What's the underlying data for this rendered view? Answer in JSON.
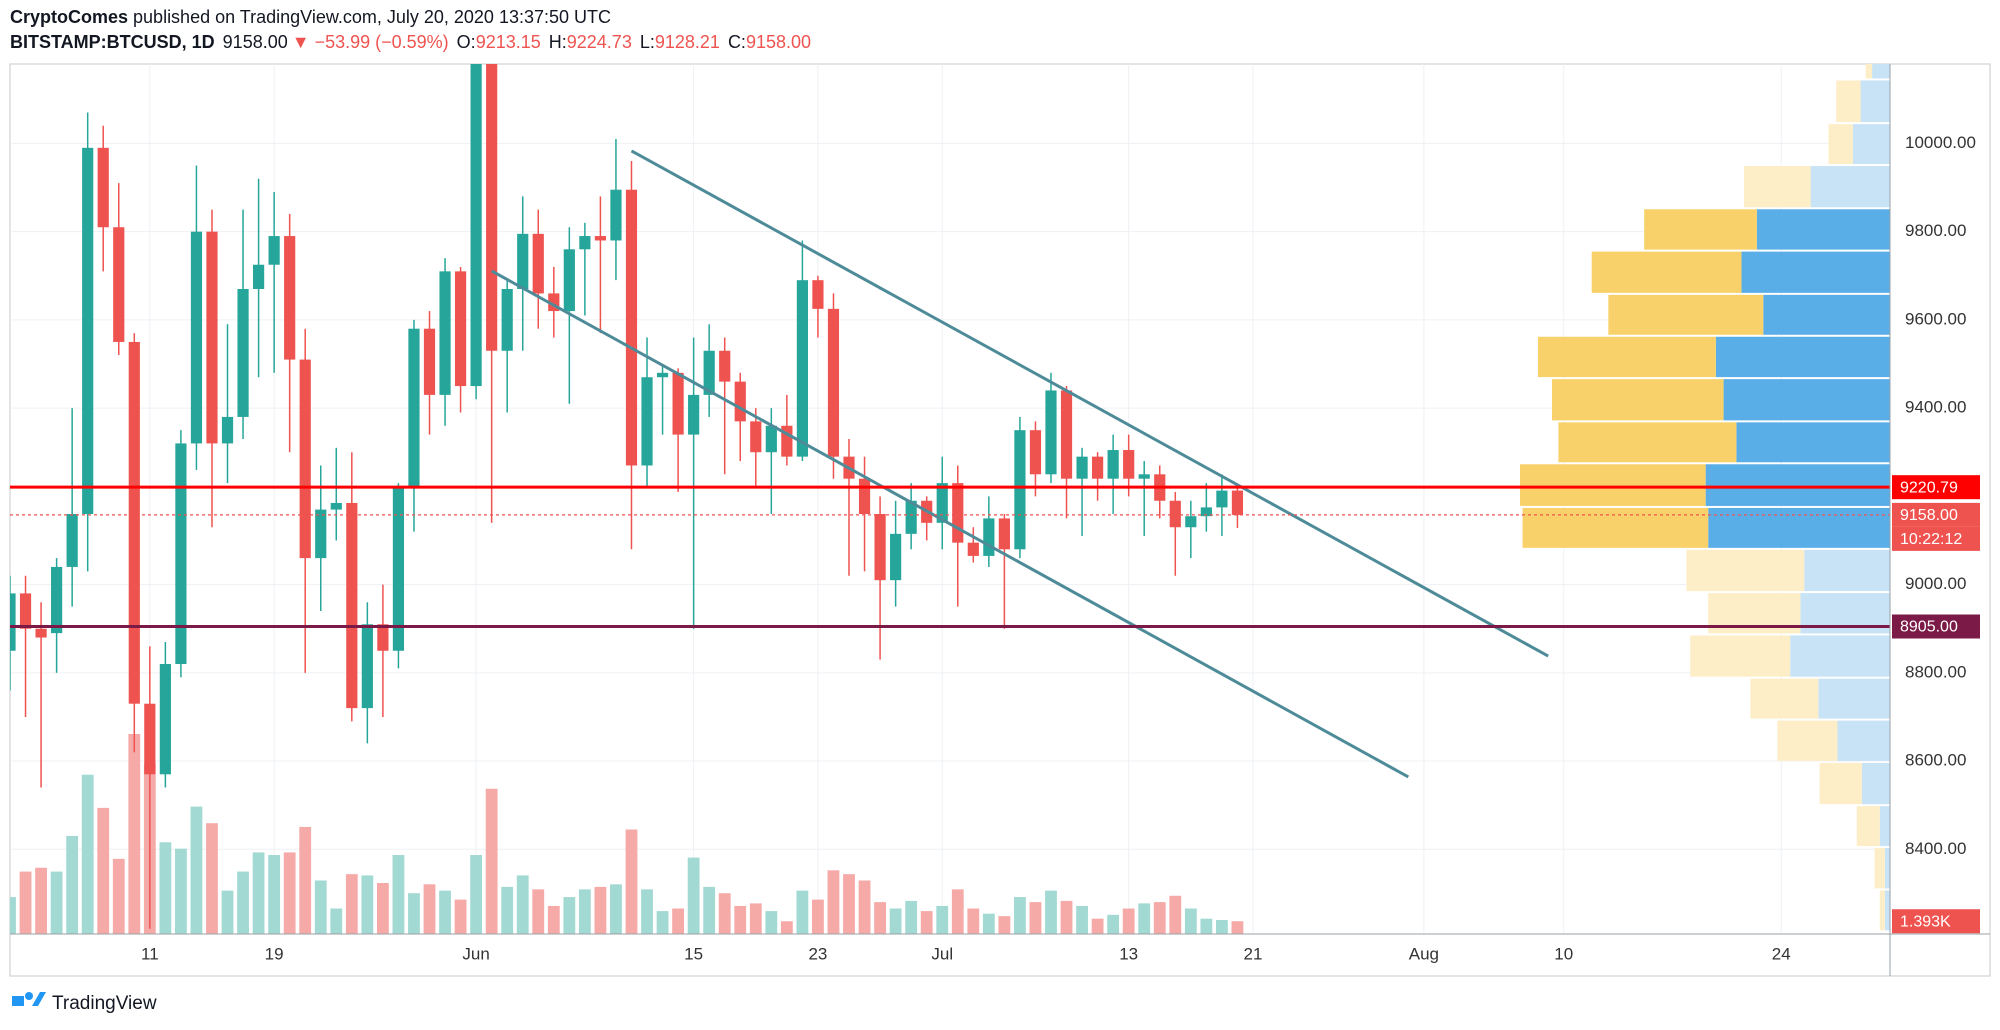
{
  "header": {
    "author": "CryptoComes",
    "published": "published on TradingView.com, July 20, 2020 13:37:50 UTC",
    "symbol": "BITSTAMP:BTCUSD, 1D",
    "last": "9158.00",
    "change": "▼ −53.99 (−0.59%)",
    "ohlc": [
      {
        "label": "O:",
        "value": "9213.15"
      },
      {
        "label": "H:",
        "value": "9224.73"
      },
      {
        "label": "L:",
        "value": "9128.21"
      },
      {
        "label": "C:",
        "value": "9158.00"
      }
    ]
  },
  "footer": {
    "brand": "TradingView"
  },
  "chart_data": {
    "type": "candlestick",
    "x": [
      "2020-05-02",
      "2020-05-03",
      "2020-05-04",
      "2020-05-05",
      "2020-05-06",
      "2020-05-07",
      "2020-05-08",
      "2020-05-09",
      "2020-05-10",
      "2020-05-11",
      "2020-05-12",
      "2020-05-13",
      "2020-05-14",
      "2020-05-15",
      "2020-05-16",
      "2020-05-17",
      "2020-05-18",
      "2020-05-19",
      "2020-05-20",
      "2020-05-21",
      "2020-05-22",
      "2020-05-23",
      "2020-05-24",
      "2020-05-25",
      "2020-05-26",
      "2020-05-27",
      "2020-05-28",
      "2020-05-29",
      "2020-05-30",
      "2020-05-31",
      "2020-06-01",
      "2020-06-02",
      "2020-06-03",
      "2020-06-04",
      "2020-06-05",
      "2020-06-06",
      "2020-06-07",
      "2020-06-08",
      "2020-06-09",
      "2020-06-10",
      "2020-06-11",
      "2020-06-12",
      "2020-06-13",
      "2020-06-14",
      "2020-06-15",
      "2020-06-16",
      "2020-06-17",
      "2020-06-18",
      "2020-06-19",
      "2020-06-20",
      "2020-06-21",
      "2020-06-22",
      "2020-06-23",
      "2020-06-24",
      "2020-06-25",
      "2020-06-26",
      "2020-06-27",
      "2020-06-28",
      "2020-06-29",
      "2020-06-30",
      "2020-07-01",
      "2020-07-02",
      "2020-07-03",
      "2020-07-04",
      "2020-07-05",
      "2020-07-06",
      "2020-07-07",
      "2020-07-08",
      "2020-07-09",
      "2020-07-10",
      "2020-07-11",
      "2020-07-12",
      "2020-07-13",
      "2020-07-14",
      "2020-07-15",
      "2020-07-16",
      "2020-07-17",
      "2020-07-18",
      "2020-07-19",
      "2020-07-20"
    ],
    "open": [
      8850,
      8980,
      8900,
      8890,
      9040,
      9160,
      9990,
      9810,
      9550,
      8730,
      8570,
      8820,
      9320,
      9800,
      9320,
      9380,
      9670,
      9725,
      9790,
      9510,
      9060,
      9170,
      9185,
      8720,
      8910,
      8850,
      9220,
      9580,
      9430,
      9710,
      9450,
      10200,
      9530,
      9670,
      9795,
      9660,
      9620,
      9760,
      9790,
      9780,
      9895,
      9270,
      9470,
      9480,
      9340,
      9430,
      9530,
      9460,
      9370,
      9300,
      9360,
      9290,
      9690,
      9625,
      9290,
      9240,
      9160,
      9010,
      9115,
      9190,
      9140,
      9230,
      9095,
      9065,
      9150,
      9080,
      9350,
      9250,
      9440,
      9240,
      9290,
      9240,
      9305,
      9240,
      9250,
      9190,
      9130,
      9155,
      9175,
      9213.15
    ],
    "high": [
      9020,
      9020,
      8960,
      9060,
      9400,
      10070,
      10040,
      9910,
      9570,
      8860,
      8870,
      9350,
      9950,
      9850,
      9590,
      9850,
      9920,
      9890,
      9840,
      9580,
      9270,
      9310,
      9300,
      8960,
      9000,
      9230,
      9600,
      9620,
      9740,
      9720,
      10380,
      10220,
      9690,
      9880,
      9850,
      9720,
      9810,
      9820,
      9880,
      10010,
      9960,
      9560,
      9500,
      9490,
      9560,
      9590,
      9560,
      9480,
      9400,
      9400,
      9430,
      9780,
      9700,
      9660,
      9330,
      9290,
      9200,
      9190,
      9230,
      9200,
      9290,
      9270,
      9130,
      9200,
      9160,
      9380,
      9370,
      9480,
      9450,
      9310,
      9300,
      9340,
      9340,
      9280,
      9270,
      9210,
      9190,
      9230,
      9250,
      9224.73
    ],
    "low": [
      8760,
      8700,
      8540,
      8800,
      8950,
      9030,
      9710,
      9520,
      8620,
      8220,
      8540,
      8790,
      9260,
      9130,
      9230,
      9330,
      9470,
      9480,
      9300,
      8800,
      8940,
      9100,
      8690,
      8640,
      8700,
      8810,
      9120,
      9340,
      9360,
      9390,
      9420,
      9140,
      9390,
      9530,
      9580,
      9560,
      9410,
      9610,
      9570,
      9690,
      9080,
      9220,
      9340,
      9210,
      8900,
      9380,
      9250,
      9280,
      9220,
      9160,
      9270,
      9280,
      9560,
      9240,
      9020,
      9030,
      8830,
      8950,
      9080,
      9100,
      9080,
      8950,
      9050,
      9040,
      8900,
      9060,
      9200,
      9230,
      9150,
      9110,
      9190,
      9160,
      9200,
      9110,
      9150,
      9020,
      9060,
      9120,
      9110,
      9128.21
    ],
    "close": [
      8980,
      8900,
      8880,
      9040,
      9160,
      9990,
      9810,
      9550,
      8730,
      8570,
      8820,
      9320,
      9800,
      9320,
      9380,
      9670,
      9725,
      9790,
      9510,
      9060,
      9170,
      9185,
      8720,
      8910,
      8850,
      9220,
      9580,
      9430,
      9710,
      9450,
      10200,
      9530,
      9670,
      9795,
      9660,
      9620,
      9760,
      9790,
      9780,
      9895,
      9270,
      9470,
      9480,
      9340,
      9430,
      9530,
      9460,
      9370,
      9300,
      9360,
      9290,
      9690,
      9625,
      9290,
      9240,
      9160,
      9010,
      9115,
      9190,
      9140,
      9230,
      9095,
      9065,
      9150,
      9080,
      9350,
      9250,
      9440,
      9240,
      9290,
      9240,
      9305,
      9240,
      9250,
      9190,
      9130,
      9155,
      9175,
      9213,
      9158
    ],
    "volume": {
      "values": [
        4030,
        6810,
        7230,
        6810,
        10700,
        17380,
        13760,
        8200,
        21820,
        18630,
        10010,
        9310,
        13900,
        12090,
        4730,
        6810,
        8900,
        8620,
        8900,
        11680,
        5840,
        2780,
        6530,
        6390,
        5560,
        8620,
        4450,
        5420,
        4730,
        3750,
        8620,
        15850,
        5140,
        6390,
        4870,
        3060,
        4030,
        4870,
        5140,
        5420,
        11400,
        4870,
        2500,
        2780,
        8340,
        5140,
        4450,
        3060,
        3340,
        2500,
        1390,
        4730,
        3750,
        6950,
        6530,
        5840,
        3480,
        2780,
        3610,
        2500,
        3060,
        4870,
        2780,
        2220,
        1950,
        4030,
        3480,
        4730,
        3610,
        3060,
        1670,
        2090,
        2780,
        3340,
        3480,
        4170,
        2780,
        1670,
        1530,
        1393
      ],
      "last_value_label": "1.393K",
      "up_color": "#a3d9d3",
      "down_color": "#f5aaa8"
    },
    "up_color": "#26a69a",
    "down_color": "#ef5350",
    "xlim": [
      "2020-05-02",
      "2020-08-31"
    ],
    "xticks": [
      {
        "value": "2020-05-11",
        "label": "11"
      },
      {
        "value": "2020-05-19",
        "label": "19"
      },
      {
        "value": "2020-06-01",
        "label": "Jun"
      },
      {
        "value": "2020-06-15",
        "label": "15"
      },
      {
        "value": "2020-06-23",
        "label": "23"
      },
      {
        "value": "2020-07-01",
        "label": "Jul"
      },
      {
        "value": "2020-07-13",
        "label": "13"
      },
      {
        "value": "2020-07-21",
        "label": "21"
      },
      {
        "value": "2020-08-01",
        "label": "Aug"
      },
      {
        "value": "2020-08-10",
        "label": "10"
      },
      {
        "value": "2020-08-24",
        "label": "24"
      }
    ],
    "ylim": [
      8208,
      10180
    ],
    "yticks": [
      {
        "value": 8400,
        "label": "8400.00"
      },
      {
        "value": 8600,
        "label": "8600.00"
      },
      {
        "value": 8800,
        "label": "8800.00"
      },
      {
        "value": 9000,
        "label": "9000.00"
      },
      {
        "value": 9400,
        "label": "9400.00"
      },
      {
        "value": 9600,
        "label": "9600.00"
      },
      {
        "value": 9800,
        "label": "9800.00"
      },
      {
        "value": 10000,
        "label": "10000.00"
      }
    ],
    "grid": true,
    "trendlines": [
      {
        "x": [
          "2020-06-11",
          "2020-08-09"
        ],
        "y": [
          9983,
          8838
        ],
        "color": "#4e8b99"
      },
      {
        "x": [
          "2020-06-02",
          "2020-07-31"
        ],
        "y": [
          9711,
          8564
        ],
        "color": "#4e8b99"
      }
    ],
    "price_lines": [
      {
        "value": 9220.79,
        "color": "#ff0000",
        "style": "solid"
      },
      {
        "value": 9158,
        "label": "9158.00",
        "color": "#ef5350",
        "style": "dotted",
        "countdown": "10:22:12"
      },
      {
        "value": 8905,
        "label": "8905.00",
        "color": "#7b1a46",
        "style": "solid"
      }
    ],
    "volume_profile": {
      "bins": [
        8214,
        8309,
        8405,
        8500,
        8598,
        8694,
        8789,
        8887,
        8983,
        9081,
        9176,
        9275,
        9370,
        9468,
        9564,
        9659,
        9757,
        9853,
        9951,
        10046,
        10145,
        10243
      ],
      "up": [
        4,
        4,
        8,
        22,
        41,
        56,
        78,
        70,
        67,
        142,
        144,
        120,
        130,
        136,
        99,
        116,
        104,
        62,
        29,
        23,
        14
      ],
      "down": [
        4,
        8,
        18,
        33,
        47,
        53,
        78,
        72,
        92,
        145,
        145,
        139,
        134,
        139,
        121,
        117,
        88,
        52,
        19,
        19,
        5
      ],
      "value_area": [
        9081,
        9853
      ],
      "up_color": "#5aaee8",
      "down_color": "#f8d16a",
      "up_color_outside": "#c8e3f6",
      "down_color_outside": "#fdeec7"
    }
  }
}
